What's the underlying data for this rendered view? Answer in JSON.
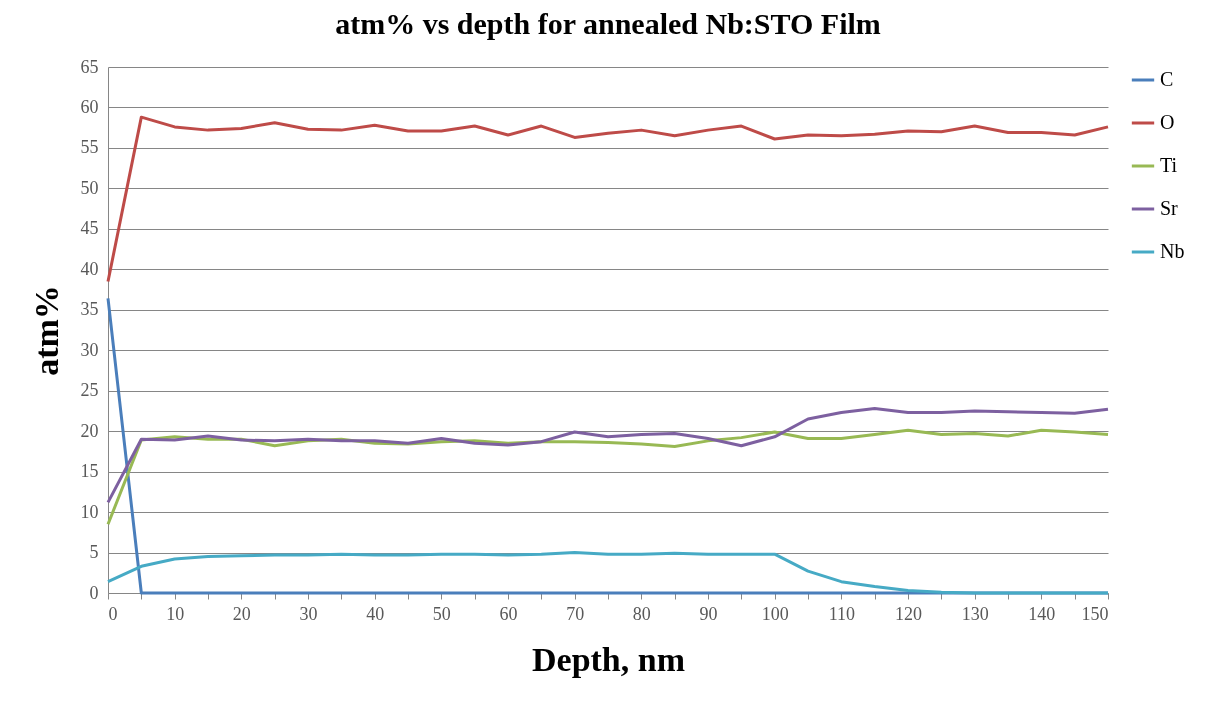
{
  "chart_data": {
    "type": "line",
    "title": "atm% vs depth for annealed Nb:STO Film",
    "xlabel": "Depth, nm",
    "ylabel": "atm%",
    "x": [
      0,
      5,
      10,
      15,
      20,
      25,
      30,
      35,
      40,
      45,
      50,
      55,
      60,
      65,
      70,
      75,
      80,
      85,
      90,
      95,
      100,
      105,
      110,
      115,
      120,
      125,
      130,
      135,
      140,
      145,
      150
    ],
    "series": [
      {
        "name": "C",
        "color": "#4a7ebb",
        "values": [
          36.4,
          0,
          0,
          0,
          0,
          0,
          0,
          0,
          0,
          0,
          0,
          0,
          0,
          0,
          0,
          0,
          0,
          0,
          0,
          0,
          0,
          0,
          0,
          0,
          0,
          0,
          0,
          0,
          0,
          0,
          0
        ]
      },
      {
        "name": "O",
        "color": "#be4b48",
        "values": [
          38.5,
          58.8,
          57.6,
          57.2,
          57.4,
          58.1,
          57.3,
          57.2,
          57.8,
          57.1,
          57.1,
          57.7,
          56.6,
          57.7,
          56.3,
          56.8,
          57.2,
          56.5,
          57.2,
          57.7,
          56.1,
          56.6,
          56.5,
          56.7,
          57.1,
          57.0,
          57.7,
          56.9,
          56.9,
          56.6,
          57.6
        ]
      },
      {
        "name": "Ti",
        "color": "#98b954",
        "values": [
          8.5,
          18.9,
          19.3,
          19.0,
          19.0,
          18.2,
          18.8,
          19.0,
          18.5,
          18.4,
          18.7,
          18.8,
          18.5,
          18.7,
          18.7,
          18.6,
          18.4,
          18.1,
          18.8,
          19.2,
          19.9,
          19.1,
          19.1,
          19.6,
          20.1,
          19.6,
          19.7,
          19.4,
          20.1,
          19.9,
          19.6
        ]
      },
      {
        "name": "Sr",
        "color": "#7d60a0",
        "values": [
          11.2,
          19.0,
          18.9,
          19.4,
          18.9,
          18.8,
          19.0,
          18.8,
          18.8,
          18.5,
          19.1,
          18.5,
          18.3,
          18.7,
          19.9,
          19.3,
          19.6,
          19.7,
          19.1,
          18.2,
          19.3,
          21.5,
          22.3,
          22.8,
          22.3,
          22.3,
          22.5,
          22.4,
          22.3,
          22.2,
          22.7
        ]
      },
      {
        "name": "Nb",
        "color": "#46aac5",
        "values": [
          1.4,
          3.3,
          4.2,
          4.5,
          4.6,
          4.7,
          4.7,
          4.8,
          4.7,
          4.7,
          4.8,
          4.8,
          4.7,
          4.8,
          5.0,
          4.8,
          4.8,
          4.9,
          4.8,
          4.8,
          4.8,
          2.7,
          1.4,
          0.8,
          0.3,
          0.1,
          0,
          0,
          0,
          0,
          0
        ]
      }
    ],
    "xlim": [
      0,
      150
    ],
    "xticks": [
      0,
      {
        "value": 5,
        "label": null
      },
      10,
      {
        "value": 15,
        "label": null
      },
      20,
      {
        "value": 25,
        "label": null
      },
      30,
      {
        "value": 35,
        "label": null
      },
      40,
      {
        "value": 45,
        "label": null
      },
      50,
      {
        "value": 55,
        "label": null
      },
      60,
      {
        "value": 65,
        "label": null
      },
      70,
      {
        "value": 75,
        "label": null
      },
      80,
      {
        "value": 85,
        "label": null
      },
      90,
      {
        "value": 95,
        "label": null
      },
      100,
      {
        "value": 105,
        "label": null
      },
      110,
      {
        "value": 115,
        "label": null
      },
      120,
      {
        "value": 125,
        "label": null
      },
      130,
      {
        "value": 135,
        "label": null
      },
      140,
      {
        "value": 145,
        "label": null
      },
      150
    ],
    "ylim": [
      0,
      65
    ],
    "yticks": [
      0,
      5,
      10,
      15,
      20,
      25,
      30,
      35,
      40,
      45,
      50,
      55,
      60,
      65
    ],
    "grid": "y",
    "legend": "right",
    "marker": "none",
    "line_style": "solid"
  }
}
